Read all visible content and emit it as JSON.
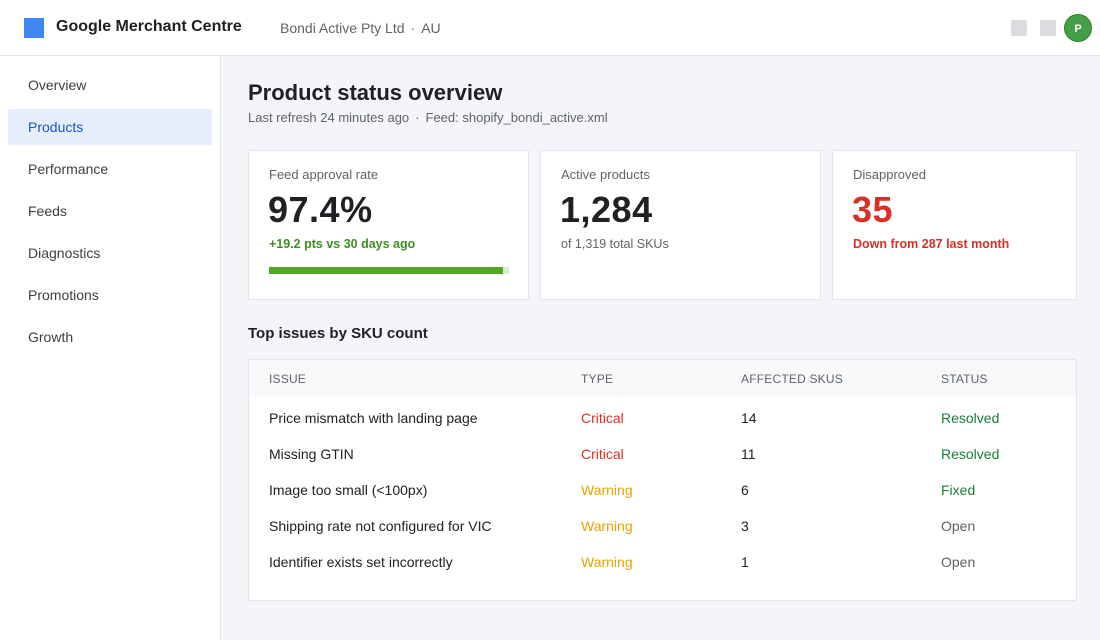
{
  "header": {
    "app_title": "Google Merchant Centre",
    "account_name": "Bondi Active Pty Ltd",
    "separator": "·",
    "country": "AU",
    "avatar_initial": "P",
    "avatar_color": "#43a047"
  },
  "sidebar": {
    "items": [
      {
        "label": "Overview",
        "active": false
      },
      {
        "label": "Products",
        "active": true
      },
      {
        "label": "Performance",
        "active": false
      },
      {
        "label": "Feeds",
        "active": false
      },
      {
        "label": "Diagnostics",
        "active": false
      },
      {
        "label": "Promotions",
        "active": false
      },
      {
        "label": "Growth",
        "active": false
      }
    ]
  },
  "page": {
    "title": "Product status overview",
    "last_refresh": "Last refresh 24 minutes ago",
    "separator": "·",
    "feed": "Feed: shopify_bondi_active.xml"
  },
  "cards": {
    "approval": {
      "label": "Feed approval rate",
      "value": "97.4%",
      "note": "+19.2 pts vs 30 days ago",
      "progress_fraction": 0.974
    },
    "active": {
      "label": "Active products",
      "value": "1,284",
      "note": "of 1,319 total SKUs"
    },
    "disapproved": {
      "label": "Disapproved",
      "value": "35",
      "note": "Down from 287 last month"
    }
  },
  "issues": {
    "title": "Top issues by SKU count",
    "headers": {
      "issue": "ISSUE",
      "type": "TYPE",
      "affected": "AFFECTED SKUS",
      "status": "STATUS"
    },
    "rows": [
      {
        "issue": "Price mismatch with landing page",
        "type": "Critical",
        "affected": "14",
        "status": "Resolved"
      },
      {
        "issue": "Missing GTIN",
        "type": "Critical",
        "affected": "11",
        "status": "Resolved"
      },
      {
        "issue": "Image too small (<100px)",
        "type": "Warning",
        "affected": "6",
        "status": "Fixed"
      },
      {
        "issue": "Shipping rate not configured for VIC",
        "type": "Warning",
        "affected": "3",
        "status": "Open"
      },
      {
        "issue": "Identifier exists set incorrectly",
        "type": "Warning",
        "affected": "1",
        "status": "Open"
      }
    ]
  },
  "colors": {
    "brand_blue": "#4285f4",
    "critical": "#d93025",
    "warning": "#e8a200",
    "resolved": "#188038",
    "positive": "#3c8f1e",
    "progress": "#52a820"
  }
}
